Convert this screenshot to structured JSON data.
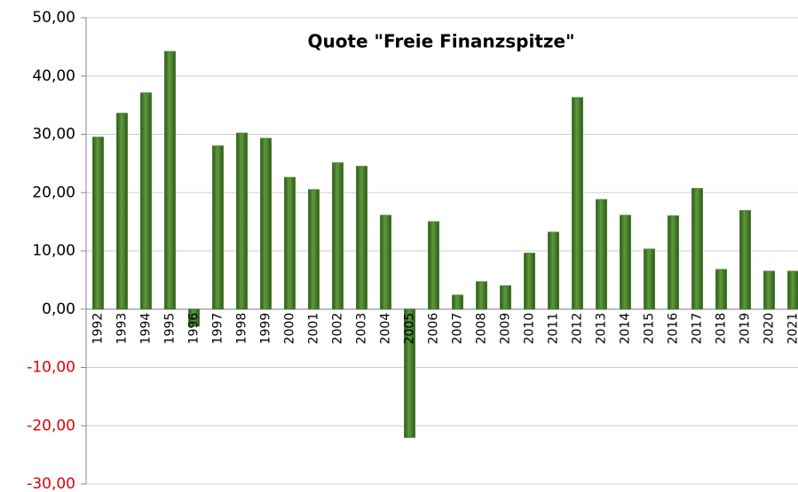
{
  "chart_data": {
    "type": "bar",
    "title": "Quote \"Freie Finanzspitze\"",
    "categories": [
      "1992",
      "1993",
      "1994",
      "1995",
      "1996",
      "1997",
      "1998",
      "1999",
      "2000",
      "2001",
      "2002",
      "2003",
      "2004",
      "2005",
      "2006",
      "2007",
      "2008",
      "2009",
      "2010",
      "2011",
      "2012",
      "2013",
      "2014",
      "2015",
      "2016",
      "2017",
      "2018",
      "2019",
      "2020",
      "2021"
    ],
    "values": [
      29.5,
      33.6,
      37.1,
      44.2,
      -2.9,
      28.0,
      30.2,
      29.3,
      22.6,
      20.5,
      25.1,
      24.5,
      16.1,
      -22.0,
      15.0,
      2.4,
      4.7,
      4.0,
      9.6,
      13.2,
      36.3,
      18.8,
      16.1,
      10.3,
      16.0,
      20.7,
      6.8,
      16.9,
      6.5,
      6.5
    ],
    "color": "#4a7d2e",
    "ylim": [
      -30,
      50
    ],
    "yticks": [
      {
        "value": -30,
        "label": "-30,00"
      },
      {
        "value": -20,
        "label": "-20,00"
      },
      {
        "value": -10,
        "label": "-10,00"
      },
      {
        "value": 0,
        "label": "0,00"
      },
      {
        "value": 10,
        "label": "10,00"
      },
      {
        "value": 20,
        "label": "20,00"
      },
      {
        "value": 30,
        "label": "30,00"
      },
      {
        "value": 40,
        "label": "40,00"
      },
      {
        "value": 50,
        "label": "50,00"
      }
    ],
    "grid": true,
    "tick_label_color": "#000000",
    "negative_tick_label_color": "#e00000"
  }
}
